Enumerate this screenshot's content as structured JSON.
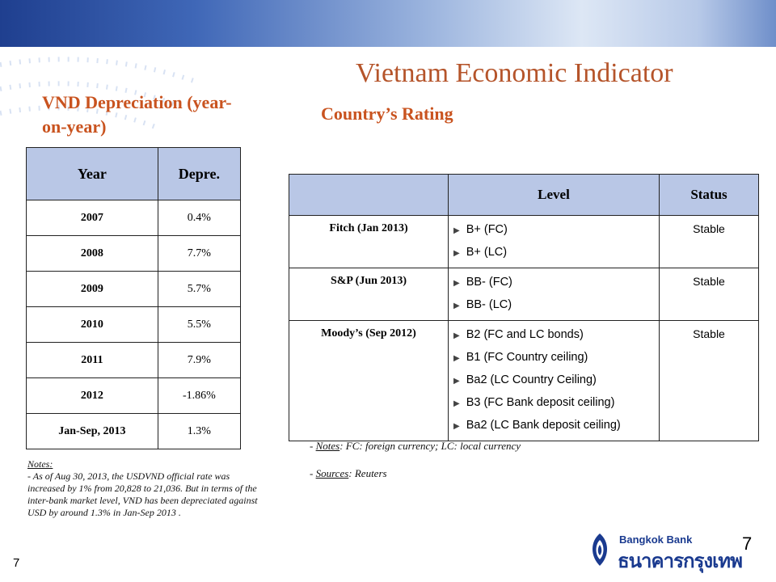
{
  "title": "Vietnam Economic Indicator",
  "left_heading": "VND Depreciation (year-on-year)",
  "right_heading": "Country’s Rating",
  "depreciation_table": {
    "headers": [
      "Year",
      "Depre."
    ],
    "rows": [
      [
        "2007",
        "0.4%"
      ],
      [
        "2008",
        "7.7%"
      ],
      [
        "2009",
        "5.7%"
      ],
      [
        "2010",
        "5.5%"
      ],
      [
        "2011",
        "7.9%"
      ],
      [
        "2012",
        "-1.86%"
      ],
      [
        "Jan-Sep, 2013",
        "1.3%"
      ]
    ]
  },
  "rating_table": {
    "headers": [
      "",
      "Level",
      "Status"
    ],
    "rows": [
      {
        "agency": "Fitch (Jan 2013)",
        "levels": [
          "B+  (FC)",
          "B+  (LC)"
        ],
        "status": "Stable"
      },
      {
        "agency": "S&P (Jun 2013)",
        "levels": [
          "BB-  (FC)",
          "BB-  (LC)"
        ],
        "status": "Stable"
      },
      {
        "agency": "Moody’s (Sep 2012)",
        "levels": [
          "B2  (FC and LC bonds)",
          "B1  (FC Country ceiling)",
          "Ba2 (LC Country Ceiling)",
          "B3  (FC Bank deposit ceiling)",
          "Ba2 (LC Bank deposit ceiling)"
        ],
        "status": "Stable"
      }
    ]
  },
  "left_notes": {
    "heading": "Notes:",
    "text": "- As of Aug 30, 2013, the USDVND official rate was increased by 1% from 20,828 to 21,036. But in terms of the inter-bank market level, VND has been depreciated against USD by around 1.3% in Jan-Sep 2013 ."
  },
  "right_notes": {
    "notes_label": "Notes",
    "notes_text": ": FC: foreign currency; LC: local currency",
    "sources_label": "Sources",
    "sources_text": ":  Reuters"
  },
  "page_number": "7",
  "page_number_corner": "7",
  "logo": {
    "english": "Bangkok Bank",
    "thai": "ธนาคารกรุงเทพ"
  },
  "colors": {
    "heading": "#c9531f",
    "title": "#b5542a",
    "table_header": "#b9c7e6",
    "brand_blue": "#1a3a8f"
  }
}
